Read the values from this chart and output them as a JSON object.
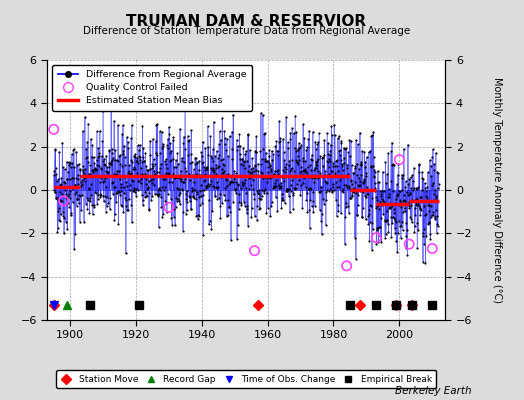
{
  "title": "TRUMAN DAM & RESERVIOR",
  "subtitle": "Difference of Station Temperature Data from Regional Average",
  "ylabel": "Monthly Temperature Anomaly Difference (°C)",
  "xlabel_credit": "Berkeley Earth",
  "xlim": [
    1893,
    2014
  ],
  "ylim": [
    -6,
    6
  ],
  "yticks": [
    -6,
    -4,
    -2,
    0,
    2,
    4,
    6
  ],
  "xticks": [
    1900,
    1920,
    1940,
    1960,
    1980,
    2000
  ],
  "bg_color": "#dcdcdc",
  "plot_bg_color": "#ffffff",
  "seed": 42,
  "segments": [
    {
      "start": 1895,
      "end": 1903,
      "bias": 0.15
    },
    {
      "start": 1903,
      "end": 1985,
      "bias": 0.65
    },
    {
      "start": 1985,
      "end": 1993,
      "bias": 0.0
    },
    {
      "start": 1993,
      "end": 2003,
      "bias": -0.65
    },
    {
      "start": 2003,
      "end": 2012,
      "bias": -0.5
    }
  ],
  "noise_scale": 1.1,
  "station_moves": [
    1895,
    1957,
    1988,
    1999,
    2004
  ],
  "record_gaps": [
    1899
  ],
  "time_obs_changes": [
    1895
  ],
  "empirical_breaks": [
    1906,
    1921,
    1985,
    1993,
    1999,
    2004,
    2010
  ],
  "qc_failed": [
    [
      1895,
      2.8
    ],
    [
      1898,
      -0.5
    ],
    [
      1930,
      -0.8
    ],
    [
      1956,
      -2.8
    ],
    [
      1984,
      -3.5
    ],
    [
      1993,
      -2.2
    ],
    [
      2000,
      1.4
    ],
    [
      2003,
      -2.5
    ],
    [
      2010,
      -2.7
    ]
  ]
}
